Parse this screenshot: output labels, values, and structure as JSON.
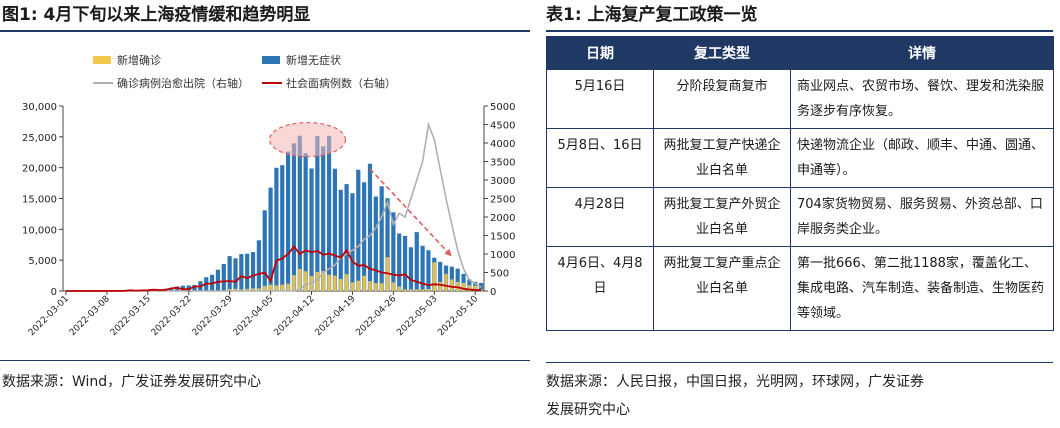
{
  "left": {
    "title": "图1:  4月下旬以来上海疫情缓和趋势明显",
    "source": "数据来源：Wind，广发证券发展研究中心"
  },
  "right": {
    "title": "表1:  上海复产复工政策一览",
    "source_line1": "数据来源：人民日报，中国日报，光明网，环球网，广发证券",
    "source_line2": "发展研究中心",
    "table": {
      "headers": [
        "日期",
        "复工类型",
        "详情"
      ],
      "rows": [
        {
          "date": "5月16日",
          "type": "分阶段复商复市",
          "detail": "商业网点、农贸市场、餐饮、理发和洗染服务逐步有序恢复。"
        },
        {
          "date": "5月8日、16日",
          "type": "两批复工复产快递企业白名单",
          "detail": "快递物流企业（邮政、顺丰、中通、圆通、申通等）。"
        },
        {
          "date": "4月28日",
          "type": "两批复工复产外贸企业白名单",
          "detail": "704家货物贸易、服务贸易、外资总部、口岸服务类企业。"
        },
        {
          "date": "4月6日、4月8日",
          "type": "两批复工复产重点企业白名单",
          "detail": "第一批666、第二批1188家，覆盖化工、集成电路、汽车制造、装备制造、生物医药等领域。"
        }
      ]
    }
  },
  "chart_data": {
    "type": "bar",
    "title": "",
    "legend": [
      "新增确诊",
      "新增无症状",
      "确诊病例治愈出院（右轴）",
      "社会面病例数（右轴）"
    ],
    "legend_placement": "top",
    "colors": {
      "confirmed": "#f2c94c",
      "asymptomatic": "#2e75b6",
      "discharged": "#b0b0b0",
      "community": "#c00000",
      "annotation": "#e06060"
    },
    "ylim_left": [
      0,
      30000
    ],
    "yticks_left": [
      "0",
      "5,000",
      "10,000",
      "15,000",
      "20,000",
      "25,000",
      "30,000"
    ],
    "ylim_right": [
      0,
      5000
    ],
    "yticks_right": [
      "0",
      "500",
      "1000",
      "1500",
      "2000",
      "2500",
      "3000",
      "3500",
      "4000",
      "4500",
      "5000"
    ],
    "xtick_labels": [
      "2022-03-01",
      "2022-03-08",
      "2022-03-15",
      "2022-03-22",
      "2022-03-29",
      "2022-04-05",
      "2022-04-12",
      "2022-04-19",
      "2022-04-26",
      "2022-05-03",
      "2022-05-10"
    ],
    "dates_start": "2022-03-01",
    "asymptomatic": [
      1,
      1,
      3,
      14,
      16,
      28,
      62,
      55,
      76,
      64,
      78,
      64,
      128,
      130,
      150,
      202,
      260,
      366,
      492,
      734,
      865,
      896,
      977,
      1580,
      2231,
      2632,
      3450,
      4381,
      5656,
      5298,
      5982,
      6051,
      6311,
      8226,
      13086,
      16766,
      19982,
      20398,
      22609,
      23937,
      25173,
      22348,
      19872,
      25141,
      23460,
      25146,
      19831,
      16407,
      17332,
      15861,
      19657,
      17629,
      20634,
      15319,
      16983,
      15047,
      12764,
      9330,
      8932,
      7084,
      9545,
      7333,
      6606,
      5395,
      4722,
      4129,
      3961,
      3625,
      2780,
      1869,
      1487,
      1305
    ],
    "confirmed": [
      0,
      0,
      1,
      2,
      0,
      3,
      4,
      3,
      5,
      4,
      5,
      2,
      41,
      5,
      9,
      8,
      57,
      8,
      17,
      24,
      31,
      4,
      4,
      29,
      45,
      38,
      50,
      96,
      326,
      355,
      260,
      358,
      438,
      425,
      824,
      1015,
      914,
      1006,
      1189,
      2573,
      3590,
      3200,
      2417,
      3084,
      3238,
      2634,
      2494,
      1931,
      2736,
      1401,
      1661,
      2472,
      1606,
      1292,
      1249,
      5487,
      1403,
      727,
      260,
      274,
      261,
      253,
      322,
      4651,
      1487,
      2780,
      1869,
      1487,
      1305,
      938,
      869,
      227
    ],
    "community": [
      0,
      0,
      0,
      0,
      0,
      0,
      0,
      0,
      2,
      3,
      5,
      20,
      10,
      15,
      20,
      35,
      25,
      30,
      70,
      90,
      50,
      45,
      125,
      120,
      200,
      200,
      250,
      260,
      270,
      250,
      400,
      350,
      420,
      460,
      500,
      270,
      820,
      880,
      1000,
      1200,
      1000,
      1100,
      1050,
      1080,
      980,
      1010,
      960,
      900,
      1100,
      800,
      680,
      700,
      600,
      560,
      500,
      480,
      440,
      420,
      450,
      300,
      250,
      200,
      160,
      180,
      170,
      140,
      110,
      100,
      60,
      40,
      30,
      20
    ],
    "discharged": [
      0,
      0,
      0,
      0,
      0,
      0,
      0,
      0,
      0,
      0,
      0,
      0,
      0,
      0,
      0,
      0,
      0,
      0,
      0,
      0,
      0,
      0,
      0,
      0,
      0,
      0,
      0,
      0,
      0,
      0,
      0,
      0,
      0,
      0,
      0,
      0,
      0,
      0,
      0,
      0,
      45,
      180,
      210,
      300,
      500,
      600,
      700,
      900,
      1000,
      1100,
      1200,
      1400,
      1500,
      1700,
      2000,
      2400,
      1800,
      2100,
      2000,
      2500,
      3000,
      3500,
      4500,
      4100,
      3300,
      2500,
      1800,
      1100,
      600,
      300,
      200,
      100
    ]
  }
}
